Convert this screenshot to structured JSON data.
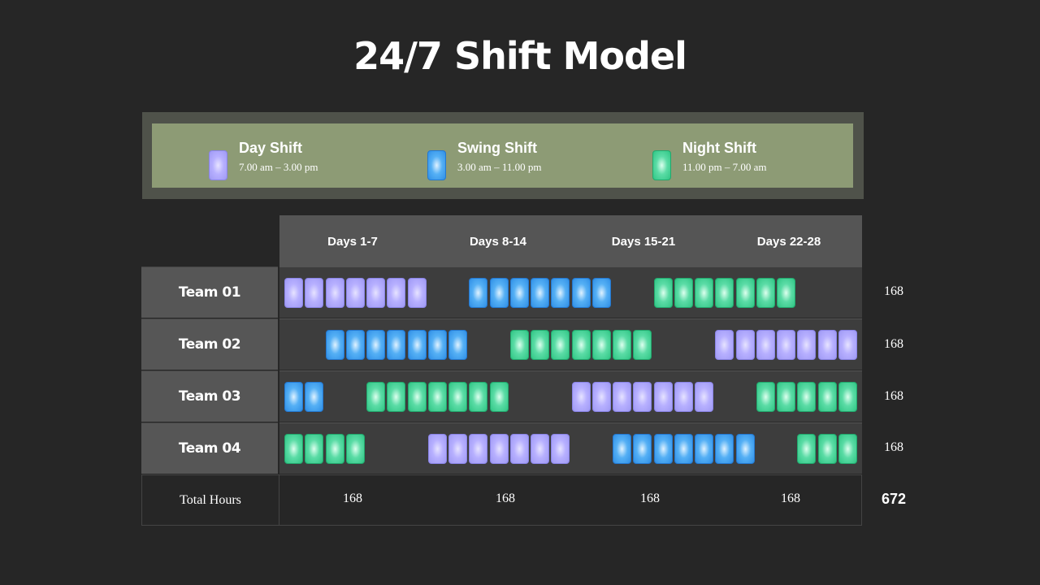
{
  "title": "24/7 Shift Model",
  "legend": [
    {
      "key": "day",
      "name": "Day Shift",
      "time": "7.00 am – 3.00 pm",
      "color": "#a9a3fb"
    },
    {
      "key": "swing",
      "name": "Swing Shift",
      "time": "3.00 am – 11.00 pm",
      "color": "#3d9ff0"
    },
    {
      "key": "night",
      "name": "Night Shift",
      "time": "11.00 pm – 7.00 am",
      "color": "#3ad294"
    }
  ],
  "periods": [
    "Days 1-7",
    "Days 8-14",
    "Days 15-21",
    "Days 22-28"
  ],
  "teams": [
    {
      "name": "Team 01",
      "total": "168",
      "runs": [
        {
          "shift": "day",
          "start_day": 1,
          "days": 7
        },
        {
          "shift": "swing",
          "start_day": 10,
          "days": 7
        },
        {
          "shift": "night",
          "start_day": 19,
          "days": 7
        }
      ]
    },
    {
      "name": "Team 02",
      "total": "168",
      "runs": [
        {
          "shift": "swing",
          "start_day": 3,
          "days": 7
        },
        {
          "shift": "night",
          "start_day": 12,
          "days": 7
        },
        {
          "shift": "day",
          "start_day": 22,
          "days": 7
        }
      ]
    },
    {
      "name": "Team 03",
      "total": "168",
      "runs": [
        {
          "shift": "swing",
          "start_day": 1,
          "days": 2
        },
        {
          "shift": "night",
          "start_day": 5,
          "days": 7
        },
        {
          "shift": "day",
          "start_day": 15,
          "days": 7
        },
        {
          "shift": "night",
          "start_day": 24,
          "days": 5
        }
      ]
    },
    {
      "name": "Team 04",
      "total": "168",
      "runs": [
        {
          "shift": "night",
          "start_day": 1,
          "days": 4
        },
        {
          "shift": "day",
          "start_day": 8,
          "days": 7
        },
        {
          "shift": "swing",
          "start_day": 17,
          "days": 7
        },
        {
          "shift": "night",
          "start_day": 26,
          "days": 3
        }
      ]
    }
  ],
  "totals": {
    "label": "Total Hours",
    "period_totals": [
      "168",
      "168",
      "168",
      "168"
    ],
    "grand_total": "672"
  }
}
